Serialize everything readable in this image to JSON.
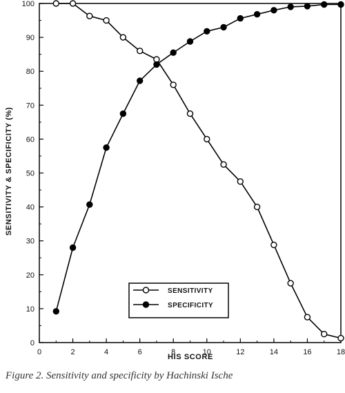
{
  "chart_data": {
    "type": "line",
    "xlabel": "HIS SCORE",
    "ylabel": "SENSITIVITY & SPECIFICITY (%)",
    "xlim": [
      0,
      18
    ],
    "ylim": [
      0,
      100
    ],
    "x_ticks": [
      0,
      2,
      4,
      6,
      8,
      10,
      12,
      14,
      16,
      18
    ],
    "y_ticks": [
      0,
      10,
      20,
      30,
      40,
      50,
      60,
      70,
      80,
      90,
      100
    ],
    "grid": false,
    "legend_position": "bottom-center",
    "x": [
      1,
      2,
      3,
      4,
      5,
      6,
      7,
      8,
      9,
      10,
      11,
      12,
      13,
      14,
      15,
      16,
      17,
      18
    ],
    "series": [
      {
        "name": "SENSITIVITY",
        "marker": "open-circle",
        "values": [
          100,
          100,
          96.3,
          95,
          90,
          86,
          83.5,
          76,
          67.5,
          60,
          52.5,
          47.5,
          40,
          28.8,
          17.5,
          7.5,
          2.5,
          1.3
        ]
      },
      {
        "name": "SPECIFICITY",
        "marker": "filled-circle",
        "values": [
          9.2,
          28,
          40.7,
          57.5,
          67.5,
          77.2,
          82,
          85.5,
          88.8,
          91.8,
          93,
          95.6,
          96.8,
          98,
          99,
          99.2,
          99.7,
          99.7
        ]
      }
    ]
  },
  "caption": "Figure 2. Sensitivity and specificity by Hachinski Ische"
}
